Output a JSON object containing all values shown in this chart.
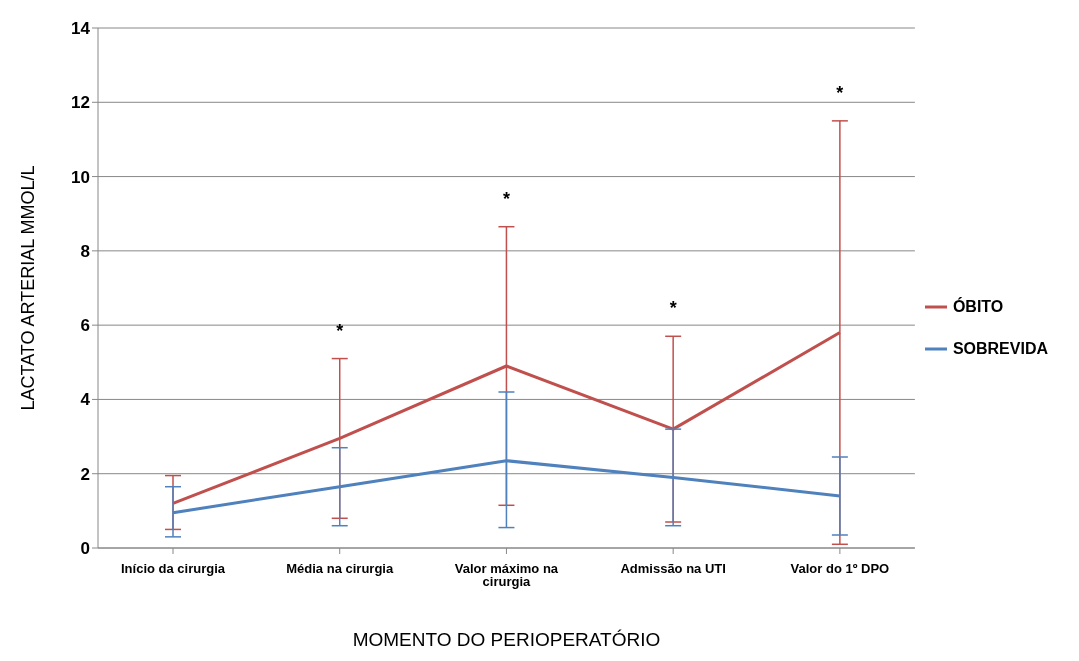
{
  "chart_data": {
    "type": "line",
    "categories": [
      "Início da cirurgia",
      "Média na cirurgia",
      "Valor máximo na cirurgia",
      "Admissão na UTI",
      "Valor do 1º DPO"
    ],
    "xlabel": "MOMENTO DO PERIOPERATÓRIO",
    "ylabel": "LACTATO ARTERIAL  MMOL/L",
    "series": [
      {
        "name": "ÓBITO",
        "color": "#c0504d",
        "values": [
          1.2,
          2.95,
          4.9,
          3.2,
          5.8
        ],
        "errors": [
          [
            0.5,
            1.95
          ],
          [
            0.8,
            5.1
          ],
          [
            1.15,
            8.65
          ],
          [
            0.7,
            5.7
          ],
          [
            0.1,
            11.5
          ]
        ]
      },
      {
        "name": "SOBREVIDA",
        "color": "#4f81bd",
        "values": [
          0.95,
          1.65,
          2.35,
          1.9,
          1.4
        ],
        "errors": [
          [
            0.3,
            1.65
          ],
          [
            0.6,
            2.7
          ],
          [
            0.55,
            4.2
          ],
          [
            0.6,
            3.2
          ],
          [
            0.35,
            2.45
          ]
        ]
      }
    ],
    "annotations": [
      {
        "text": "*",
        "x": "Média na cirurgia",
        "y": 5.1
      },
      {
        "text": "*",
        "x": "Valor máximo na cirurgia",
        "y": 8.65
      },
      {
        "text": "*",
        "x": "Admissão na UTI",
        "y": 5.7
      },
      {
        "text": "*",
        "x": "Valor do 1º DPO",
        "y": 11.5
      }
    ],
    "ylim": [
      0,
      14
    ],
    "yticks": [
      0,
      2,
      4,
      6,
      8,
      10,
      12,
      14
    ],
    "grid": "y",
    "legend": "right",
    "marker": "none",
    "line_style": "solid"
  }
}
